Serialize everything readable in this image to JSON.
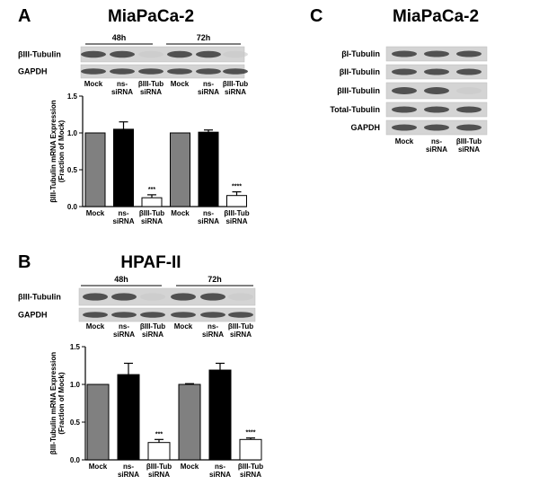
{
  "panels": {
    "A": {
      "letter": "A",
      "title": "MiaPaCa-2",
      "groups": [
        "48h",
        "72h"
      ],
      "blot_rows": [
        "βIII-Tubulin",
        "GAPDH"
      ],
      "lanes": [
        "Mock",
        "ns-\nsiRNA",
        "βIII-Tub\nsiRNA",
        "Mock",
        "ns-\nsiRNA",
        "βIII-Tub\nsiRNA"
      ]
    },
    "B": {
      "letter": "B",
      "title": "HPAF-II",
      "groups": [
        "48h",
        "72h"
      ],
      "blot_rows": [
        "βIII-Tubulin",
        "GAPDH"
      ],
      "lanes": [
        "Mock",
        "ns-\nsiRNA",
        "βIII-Tub\nsiRNA",
        "Mock",
        "ns-\nsiRNA",
        "βIII-Tub\nsiRNA"
      ]
    },
    "C": {
      "letter": "C",
      "title": "MiaPaCa-2",
      "blot_rows": [
        "βI-Tubulin",
        "βII-Tubulin",
        "βIII-Tubulin",
        "Total-Tubulin",
        "GAPDH"
      ],
      "lanes": [
        "Mock",
        "ns-\nsiRNA",
        "βIII-Tub\nsiRNA"
      ]
    }
  },
  "chart_data": [
    {
      "type": "bar",
      "ylabel": [
        "βIII-Tubulin mRNA Expression",
        "(Fraction of Mock)"
      ],
      "categories": [
        "Mock",
        "ns-\nsiRNA",
        "βIII-Tub\nsiRNA",
        "Mock",
        "ns-\nsiRNA",
        "βIII-Tub\nsiRNA"
      ],
      "values": [
        1.0,
        1.05,
        0.12,
        1.0,
        1.01,
        0.15
      ],
      "errors": [
        null,
        0.1,
        0.04,
        null,
        0.03,
        0.05
      ],
      "colors": [
        "#808080",
        "#000000",
        "#ffffff",
        "#808080",
        "#000000",
        "#ffffff"
      ],
      "annotations": [
        {
          "index": 2,
          "text": "***"
        },
        {
          "index": 5,
          "text": "****"
        }
      ],
      "ylim": [
        0,
        1.5
      ],
      "yticks": [
        {
          "value": 0,
          "label": "0.0"
        },
        0.5,
        {
          "value": 1,
          "label": "1.0"
        },
        1.5
      ]
    },
    {
      "type": "bar",
      "ylabel": [
        "βIII-Tubulin mRNA Expression",
        "(Fraction of Mock)"
      ],
      "categories": [
        "Mock",
        "ns-\nsiRNA",
        "βIII-Tub\nsiRNA",
        "Mock",
        "ns-\nsiRNA",
        "βIII-Tub\nsiRNA"
      ],
      "values": [
        1.0,
        1.13,
        0.23,
        1.0,
        1.19,
        0.27
      ],
      "errors": [
        null,
        0.15,
        0.04,
        0.01,
        0.09,
        0.02
      ],
      "colors": [
        "#808080",
        "#000000",
        "#ffffff",
        "#808080",
        "#000000",
        "#ffffff"
      ],
      "annotations": [
        {
          "index": 2,
          "text": "***"
        },
        {
          "index": 5,
          "text": "****"
        }
      ],
      "ylim": [
        0,
        1.5
      ],
      "yticks": [
        {
          "value": 0,
          "label": "0.0"
        },
        0.5,
        {
          "value": 1,
          "label": "1.0"
        },
        1.5
      ]
    }
  ]
}
